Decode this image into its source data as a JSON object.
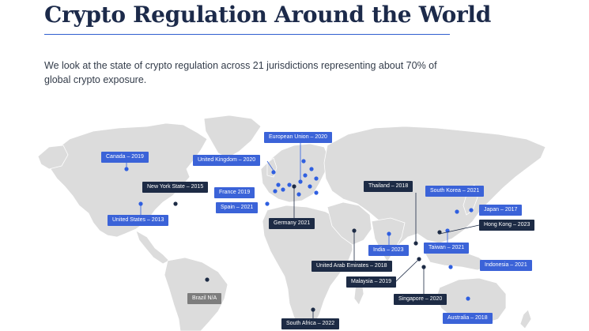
{
  "header": {
    "title": "Crypto Regulation Around the World",
    "subtitle": "We look at the state of crypto regulation across 21 jurisdictions representing about 70% of global crypto exposure."
  },
  "colors": {
    "title": "#1c2a4a",
    "accent_rule": "#2f5fd0",
    "land": "#dcdcdc",
    "label_blue": "#3b63d8",
    "label_navy": "#1d2b45",
    "label_grey": "#7d7d7d",
    "dot_blue": "#2f5fe0",
    "dot_navy": "#1d2b45"
  },
  "map": {
    "labels": [
      {
        "id": "canada",
        "text": "Canada – 2019",
        "style": "blue"
      },
      {
        "id": "united-states",
        "text": "United States – 2013",
        "style": "blue"
      },
      {
        "id": "new-york-state",
        "text": "New York State – 2015",
        "style": "navy"
      },
      {
        "id": "european-union",
        "text": "European Union – 2020",
        "style": "blue"
      },
      {
        "id": "united-kingdom",
        "text": "United Kingdom – 2020",
        "style": "blue"
      },
      {
        "id": "france",
        "text": "France    2019",
        "style": "blue"
      },
      {
        "id": "spain",
        "text": "Spain – 2021",
        "style": "blue"
      },
      {
        "id": "germany",
        "text": "Germany    2021",
        "style": "navy"
      },
      {
        "id": "thailand",
        "text": "Thailand – 2018",
        "style": "navy"
      },
      {
        "id": "south-korea",
        "text": "South Korea – 2021",
        "style": "blue"
      },
      {
        "id": "japan",
        "text": "Japan – 2017",
        "style": "blue"
      },
      {
        "id": "hong-kong",
        "text": "Hong Kong – 2023",
        "style": "navy"
      },
      {
        "id": "india",
        "text": "India – 2023",
        "style": "blue"
      },
      {
        "id": "taiwan",
        "text": "Taiwan – 2021",
        "style": "blue"
      },
      {
        "id": "indonesia",
        "text": "Indonesia – 2021",
        "style": "blue"
      },
      {
        "id": "uae",
        "text": "United Arab Emirates – 2018",
        "style": "navy"
      },
      {
        "id": "malaysia",
        "text": "Malaysia – 2019",
        "style": "navy"
      },
      {
        "id": "singapore",
        "text": "Singapore – 2020",
        "style": "navy"
      },
      {
        "id": "australia",
        "text": "Australia – 2018",
        "style": "blue"
      },
      {
        "id": "brazil",
        "text": "Brazil    N/A",
        "style": "grey"
      },
      {
        "id": "south-africa",
        "text": "South Africa – 2022",
        "style": "navy"
      }
    ]
  }
}
